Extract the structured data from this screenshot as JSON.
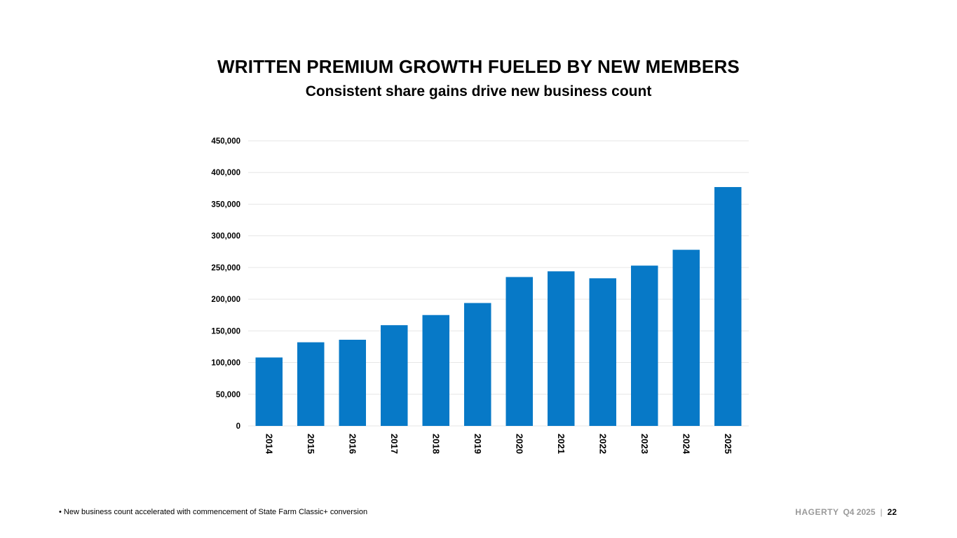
{
  "slide": {
    "title": "WRITTEN PREMIUM GROWTH FUELED BY NEW MEMBERS",
    "subtitle": "Consistent share gains drive new business count",
    "footnote": "• New business count accelerated with commencement of State Farm Classic+ conversion",
    "footer": {
      "brand": "HAGERTY",
      "quarter": "Q4 2025",
      "separator": "|",
      "page_number": "22"
    }
  },
  "colors": {
    "bar": "#0779C7",
    "grid": "#e6e6e6"
  },
  "chart_data": {
    "type": "bar",
    "title": "",
    "xlabel": "",
    "ylabel": "",
    "categories": [
      "2014",
      "2015",
      "2016",
      "2017",
      "2018",
      "2019",
      "2020",
      "2021",
      "2022",
      "2023",
      "2024",
      "2025"
    ],
    "values": [
      108000,
      132000,
      136000,
      159000,
      175000,
      194000,
      235000,
      244000,
      233000,
      253000,
      278000,
      377000
    ],
    "ylim": [
      0,
      450000
    ],
    "yticks": [
      0,
      50000,
      100000,
      150000,
      200000,
      250000,
      300000,
      350000,
      400000,
      450000
    ],
    "ytick_labels": [
      "0",
      "50,000",
      "100,000",
      "150,000",
      "200,000",
      "250,000",
      "300,000",
      "350,000",
      "400,000",
      "450,000"
    ],
    "grid": true,
    "legend": "none"
  }
}
